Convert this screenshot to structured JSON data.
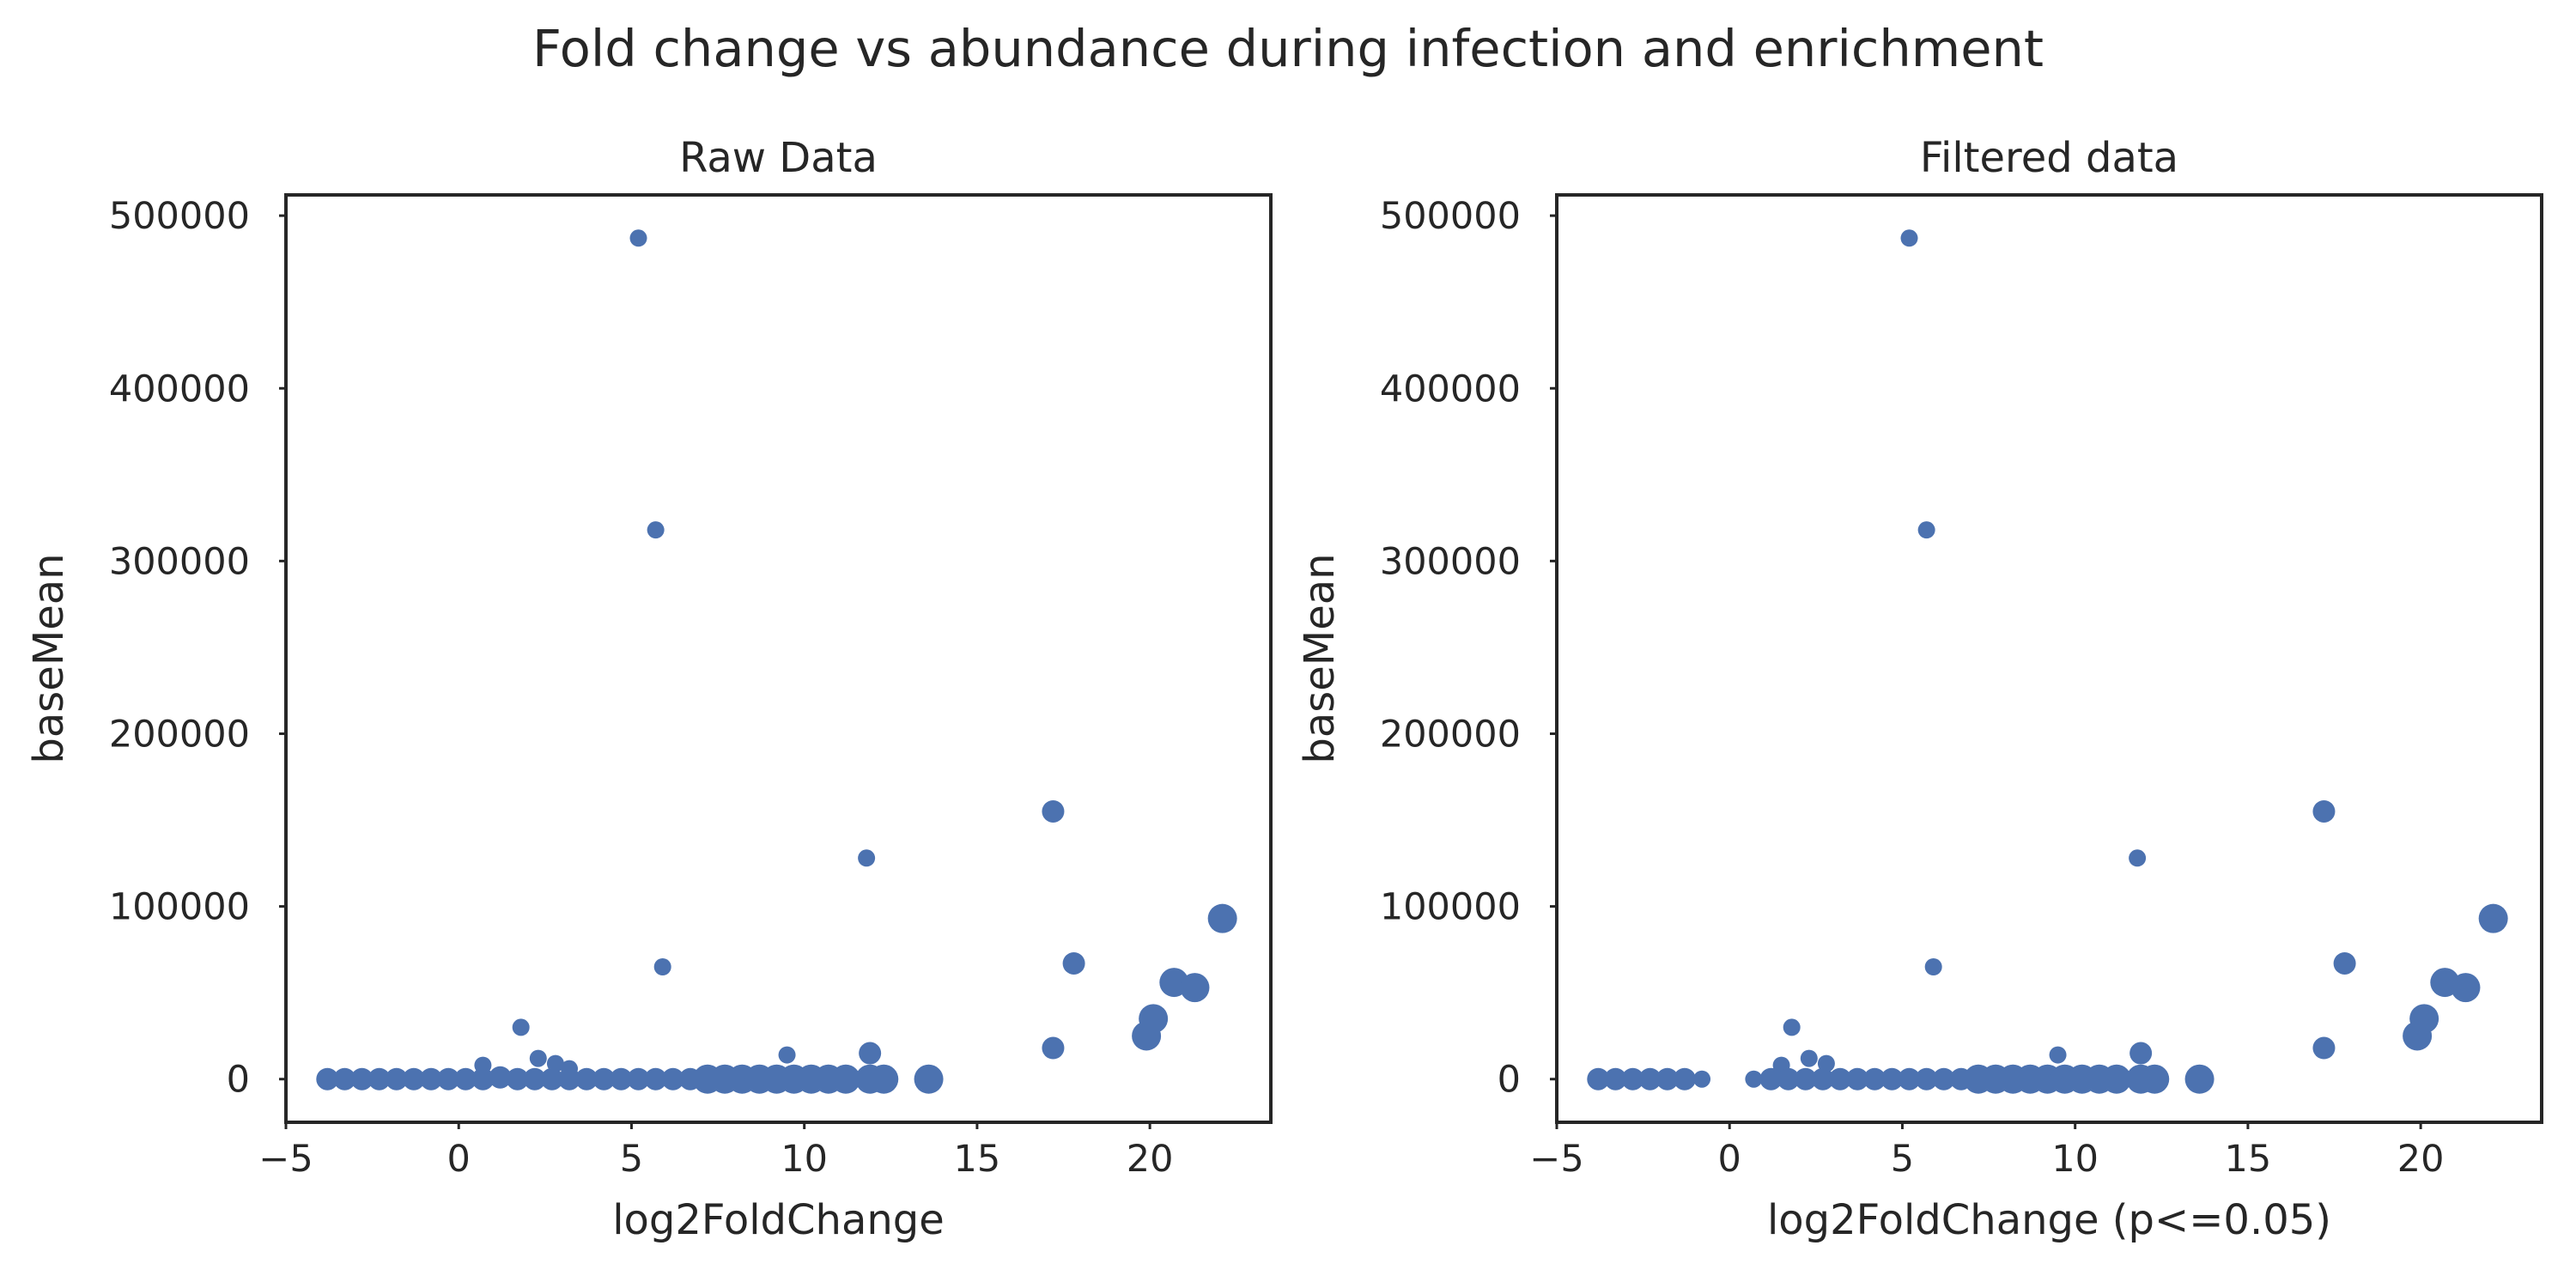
{
  "suptitle": "Fold change vs abundance during infection and enrichment",
  "colors": {
    "marker": "#4C72B0",
    "axes": "#262626",
    "background": "#ffffff"
  },
  "chart_data": [
    {
      "type": "scatter",
      "title": "Raw Data",
      "xlabel": "log2FoldChange",
      "ylabel": "baseMean",
      "xlim": [
        -5,
        23.5
      ],
      "ylim": [
        -25000,
        512000
      ],
      "xticks": [
        -5,
        0,
        5,
        10,
        15,
        20
      ],
      "xtick_labels": [
        "−5",
        "0",
        "5",
        "10",
        "15",
        "20"
      ],
      "yticks": [
        0,
        100000,
        200000,
        300000,
        400000,
        500000
      ],
      "ytick_labels": [
        "0",
        "100000",
        "200000",
        "300000",
        "400000",
        "500000"
      ],
      "grid": false,
      "marker_size": "varies by point",
      "points": [
        {
          "x": 5.2,
          "y": 487000,
          "size": 1
        },
        {
          "x": 5.7,
          "y": 318000,
          "size": 1
        },
        {
          "x": 5.9,
          "y": 65000,
          "size": 1
        },
        {
          "x": 11.8,
          "y": 128000,
          "size": 1
        },
        {
          "x": 17.2,
          "y": 155000,
          "size": 2
        },
        {
          "x": 17.8,
          "y": 67000,
          "size": 2
        },
        {
          "x": 17.2,
          "y": 18000,
          "size": 2
        },
        {
          "x": 22.1,
          "y": 93000,
          "size": 3
        },
        {
          "x": 20.7,
          "y": 56000,
          "size": 3
        },
        {
          "x": 21.3,
          "y": 53000,
          "size": 3
        },
        {
          "x": 20.1,
          "y": 35000,
          "size": 3
        },
        {
          "x": 19.9,
          "y": 25000,
          "size": 3
        },
        {
          "x": 1.8,
          "y": 30000,
          "size": 1
        },
        {
          "x": 2.3,
          "y": 12000,
          "size": 1
        },
        {
          "x": 2.8,
          "y": 9000,
          "size": 1
        },
        {
          "x": 3.2,
          "y": 6000,
          "size": 1
        },
        {
          "x": 0.7,
          "y": 8000,
          "size": 1
        },
        {
          "x": 9.5,
          "y": 14000,
          "size": 1
        },
        {
          "x": 11.9,
          "y": 15000,
          "size": 2
        },
        {
          "x": 13.6,
          "y": 0,
          "size": 3
        },
        {
          "x": -3.8,
          "y": 0,
          "size": 2
        },
        {
          "x": -3.3,
          "y": 0,
          "size": 2
        },
        {
          "x": -2.8,
          "y": 0,
          "size": 2
        },
        {
          "x": -2.3,
          "y": 0,
          "size": 2
        },
        {
          "x": -1.8,
          "y": 0,
          "size": 2
        },
        {
          "x": -1.3,
          "y": 0,
          "size": 2
        },
        {
          "x": -0.8,
          "y": 0,
          "size": 2
        },
        {
          "x": -0.3,
          "y": 0,
          "size": 2
        },
        {
          "x": 0.2,
          "y": 0,
          "size": 2
        },
        {
          "x": 0.7,
          "y": 0,
          "size": 2
        },
        {
          "x": 1.2,
          "y": 1000,
          "size": 2
        },
        {
          "x": 1.7,
          "y": 0,
          "size": 2
        },
        {
          "x": 2.2,
          "y": 0,
          "size": 2
        },
        {
          "x": 2.7,
          "y": 0,
          "size": 2
        },
        {
          "x": 3.2,
          "y": 0,
          "size": 2
        },
        {
          "x": 3.7,
          "y": 0,
          "size": 2
        },
        {
          "x": 4.2,
          "y": 0,
          "size": 2
        },
        {
          "x": 4.7,
          "y": 0,
          "size": 2
        },
        {
          "x": 5.2,
          "y": 0,
          "size": 2
        },
        {
          "x": 5.7,
          "y": 0,
          "size": 2
        },
        {
          "x": 6.2,
          "y": 0,
          "size": 2
        },
        {
          "x": 6.7,
          "y": 0,
          "size": 2
        },
        {
          "x": 7.2,
          "y": 0,
          "size": 3
        },
        {
          "x": 7.7,
          "y": 0,
          "size": 3
        },
        {
          "x": 8.2,
          "y": 0,
          "size": 3
        },
        {
          "x": 8.7,
          "y": 0,
          "size": 3
        },
        {
          "x": 9.2,
          "y": 0,
          "size": 3
        },
        {
          "x": 9.7,
          "y": 0,
          "size": 3
        },
        {
          "x": 10.2,
          "y": 0,
          "size": 3
        },
        {
          "x": 10.7,
          "y": 0,
          "size": 3
        },
        {
          "x": 11.2,
          "y": 0,
          "size": 3
        },
        {
          "x": 11.9,
          "y": 0,
          "size": 3
        },
        {
          "x": 12.3,
          "y": 0,
          "size": 3
        }
      ]
    },
    {
      "type": "scatter",
      "title": "Filtered data",
      "xlabel": "log2FoldChange (p<=0.05)",
      "ylabel": "baseMean",
      "xlim": [
        -5,
        23.5
      ],
      "ylim": [
        -25000,
        512000
      ],
      "xticks": [
        -5,
        0,
        5,
        10,
        15,
        20
      ],
      "xtick_labels": [
        "−5",
        "0",
        "5",
        "10",
        "15",
        "20"
      ],
      "yticks": [
        0,
        100000,
        200000,
        300000,
        400000,
        500000
      ],
      "ytick_labels": [
        "0",
        "100000",
        "200000",
        "300000",
        "400000",
        "500000"
      ],
      "grid": false,
      "marker_size": "varies by point",
      "points": [
        {
          "x": 5.2,
          "y": 487000,
          "size": 1
        },
        {
          "x": 5.7,
          "y": 318000,
          "size": 1
        },
        {
          "x": 5.9,
          "y": 65000,
          "size": 1
        },
        {
          "x": 11.8,
          "y": 128000,
          "size": 1
        },
        {
          "x": 17.2,
          "y": 155000,
          "size": 2
        },
        {
          "x": 17.8,
          "y": 67000,
          "size": 2
        },
        {
          "x": 17.2,
          "y": 18000,
          "size": 2
        },
        {
          "x": 22.1,
          "y": 93000,
          "size": 3
        },
        {
          "x": 20.7,
          "y": 56000,
          "size": 3
        },
        {
          "x": 21.3,
          "y": 53000,
          "size": 3
        },
        {
          "x": 20.1,
          "y": 35000,
          "size": 3
        },
        {
          "x": 19.9,
          "y": 25000,
          "size": 3
        },
        {
          "x": 1.8,
          "y": 30000,
          "size": 1
        },
        {
          "x": 2.3,
          "y": 12000,
          "size": 1
        },
        {
          "x": 2.8,
          "y": 9000,
          "size": 1
        },
        {
          "x": 1.5,
          "y": 8000,
          "size": 1
        },
        {
          "x": 9.5,
          "y": 14000,
          "size": 1
        },
        {
          "x": 11.9,
          "y": 15000,
          "size": 2
        },
        {
          "x": 13.6,
          "y": 0,
          "size": 3
        },
        {
          "x": -3.8,
          "y": 0,
          "size": 2
        },
        {
          "x": -3.3,
          "y": 0,
          "size": 2
        },
        {
          "x": -2.8,
          "y": 0,
          "size": 2
        },
        {
          "x": -2.3,
          "y": 0,
          "size": 2
        },
        {
          "x": -1.8,
          "y": 0,
          "size": 2
        },
        {
          "x": -1.3,
          "y": 0,
          "size": 2
        },
        {
          "x": -0.8,
          "y": 0,
          "size": 1
        },
        {
          "x": 0.7,
          "y": 0,
          "size": 1
        },
        {
          "x": 1.2,
          "y": 0,
          "size": 2
        },
        {
          "x": 1.7,
          "y": 0,
          "size": 2
        },
        {
          "x": 2.2,
          "y": 0,
          "size": 2
        },
        {
          "x": 2.7,
          "y": 0,
          "size": 2
        },
        {
          "x": 3.2,
          "y": 0,
          "size": 2
        },
        {
          "x": 3.7,
          "y": 0,
          "size": 2
        },
        {
          "x": 4.2,
          "y": 0,
          "size": 2
        },
        {
          "x": 4.7,
          "y": 0,
          "size": 2
        },
        {
          "x": 5.2,
          "y": 0,
          "size": 2
        },
        {
          "x": 5.7,
          "y": 0,
          "size": 2
        },
        {
          "x": 6.2,
          "y": 0,
          "size": 2
        },
        {
          "x": 6.7,
          "y": 0,
          "size": 2
        },
        {
          "x": 7.2,
          "y": 0,
          "size": 3
        },
        {
          "x": 7.7,
          "y": 0,
          "size": 3
        },
        {
          "x": 8.2,
          "y": 0,
          "size": 3
        },
        {
          "x": 8.7,
          "y": 0,
          "size": 3
        },
        {
          "x": 9.2,
          "y": 0,
          "size": 3
        },
        {
          "x": 9.7,
          "y": 0,
          "size": 3
        },
        {
          "x": 10.2,
          "y": 0,
          "size": 3
        },
        {
          "x": 10.7,
          "y": 0,
          "size": 3
        },
        {
          "x": 11.2,
          "y": 0,
          "size": 3
        },
        {
          "x": 11.9,
          "y": 0,
          "size": 3
        },
        {
          "x": 12.3,
          "y": 0,
          "size": 3
        }
      ]
    }
  ]
}
